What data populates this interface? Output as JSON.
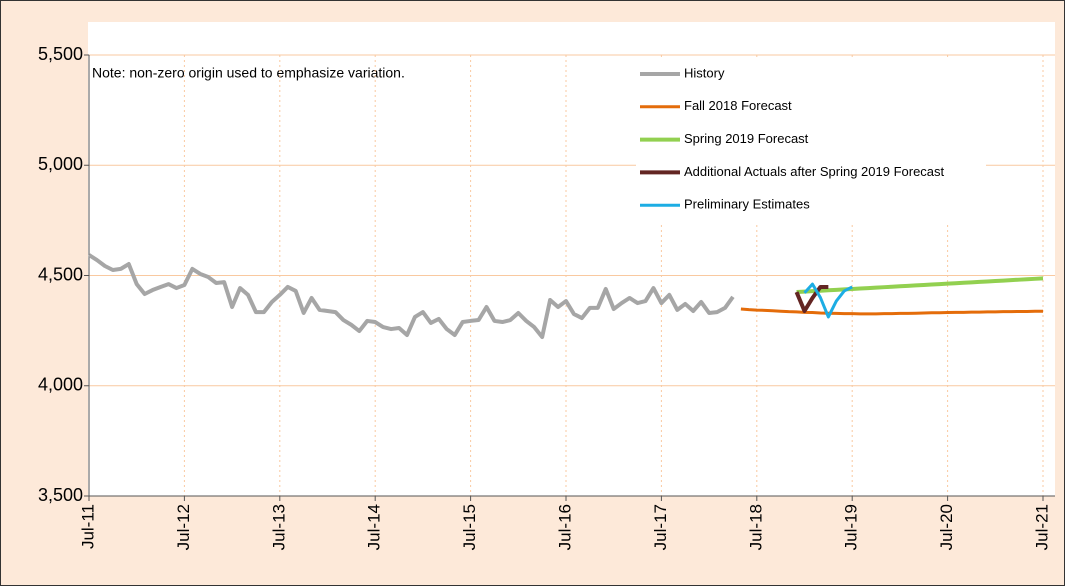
{
  "chart_data": {
    "type": "line",
    "note": "Note: non-zero origin used to emphasize variation.",
    "categories": [
      "Jul-11",
      null,
      null,
      null,
      null,
      null,
      null,
      null,
      null,
      null,
      null,
      null,
      "Jul-12",
      null,
      null,
      null,
      null,
      null,
      null,
      null,
      null,
      null,
      null,
      null,
      "Jul-13",
      null,
      null,
      null,
      null,
      null,
      null,
      null,
      null,
      null,
      null,
      null,
      "Jul-14",
      null,
      null,
      null,
      null,
      null,
      null,
      null,
      null,
      null,
      null,
      null,
      "Jul-15",
      null,
      null,
      null,
      null,
      null,
      null,
      null,
      null,
      null,
      null,
      null,
      "Jul-16",
      null,
      null,
      null,
      null,
      null,
      null,
      null,
      null,
      null,
      null,
      null,
      "Jul-17",
      null,
      null,
      null,
      null,
      null,
      null,
      null,
      null,
      null,
      null,
      null,
      "Jul-18",
      null,
      null,
      null,
      null,
      null,
      null,
      null,
      null,
      null,
      null,
      null,
      "Jul-19",
      null,
      null,
      null,
      null,
      null,
      null,
      null,
      null,
      null,
      null,
      null,
      "Jul-20",
      null,
      null,
      null,
      null,
      null,
      null,
      null,
      null,
      null,
      null,
      null,
      "Jul-21"
    ],
    "series": [
      {
        "name": "History",
        "color": "#a6a6a6",
        "width": 4,
        "values": [
          4593,
          4570,
          4543,
          4525,
          4530,
          4552,
          4461,
          4416,
          4434,
          4448,
          4461,
          4443,
          4457,
          4530,
          4507,
          4493,
          4466,
          4470,
          4357,
          4443,
          4412,
          4334,
          4334,
          4380,
          4412,
          4448,
          4430,
          4330,
          4398,
          4344,
          4339,
          4334,
          4298,
          4276,
          4248,
          4294,
          4289,
          4266,
          4257,
          4262,
          4230,
          4312,
          4334,
          4285,
          4303,
          4257,
          4230,
          4289,
          4294,
          4298,
          4357,
          4294,
          4289,
          4298,
          4330,
          4294,
          4266,
          4221,
          4389,
          4357,
          4384,
          4325,
          4307,
          4353,
          4353,
          4439,
          4348,
          4375,
          4398,
          4375,
          4384,
          4443,
          4375,
          4412,
          4344,
          4371,
          4339,
          4380,
          4330,
          4334,
          4353,
          4403,
          null,
          null,
          null,
          null,
          null,
          null,
          null,
          null,
          null,
          null,
          null,
          null,
          null,
          null,
          null,
          null,
          null,
          null,
          null,
          null,
          null,
          null,
          null,
          null,
          null,
          null,
          null,
          null,
          null,
          null,
          null,
          null,
          null,
          null,
          null,
          null,
          null,
          null,
          null
        ]
      },
      {
        "name": "Fall 2018 Forecast",
        "color": "#e46c0a",
        "width": 3,
        "values": [
          null,
          null,
          null,
          null,
          null,
          null,
          null,
          null,
          null,
          null,
          null,
          null,
          null,
          null,
          null,
          null,
          null,
          null,
          null,
          null,
          null,
          null,
          null,
          null,
          null,
          null,
          null,
          null,
          null,
          null,
          null,
          null,
          null,
          null,
          null,
          null,
          null,
          null,
          null,
          null,
          null,
          null,
          null,
          null,
          null,
          null,
          null,
          null,
          null,
          null,
          null,
          null,
          null,
          null,
          null,
          null,
          null,
          null,
          null,
          null,
          null,
          null,
          null,
          null,
          null,
          null,
          null,
          null,
          null,
          null,
          null,
          null,
          null,
          null,
          null,
          null,
          null,
          null,
          null,
          null,
          null,
          null,
          4348,
          4345,
          4343,
          4342,
          4340,
          4338,
          4336,
          4335,
          4333,
          4332,
          4330,
          4329,
          4328,
          4327,
          4327,
          4326,
          4326,
          4326,
          4327,
          4327,
          4328,
          4328,
          4329,
          4330,
          4331,
          4331,
          4332,
          4333,
          4333,
          4334,
          4334,
          4335,
          4335,
          4336,
          4336,
          4337,
          4337,
          4338,
          4338
        ]
      },
      {
        "name": "Spring 2019 Forecast",
        "color": "#92d050",
        "width": 4,
        "values": [
          null,
          null,
          null,
          null,
          null,
          null,
          null,
          null,
          null,
          null,
          null,
          null,
          null,
          null,
          null,
          null,
          null,
          null,
          null,
          null,
          null,
          null,
          null,
          null,
          null,
          null,
          null,
          null,
          null,
          null,
          null,
          null,
          null,
          null,
          null,
          null,
          null,
          null,
          null,
          null,
          null,
          null,
          null,
          null,
          null,
          null,
          null,
          null,
          null,
          null,
          null,
          null,
          null,
          null,
          null,
          null,
          null,
          null,
          null,
          null,
          null,
          null,
          null,
          null,
          null,
          null,
          null,
          null,
          null,
          null,
          null,
          null,
          null,
          null,
          null,
          null,
          null,
          null,
          null,
          null,
          null,
          null,
          null,
          null,
          null,
          null,
          null,
          null,
          null,
          4425,
          4427,
          4429,
          4431,
          4433,
          4435,
          4437,
          4439,
          4441,
          4443,
          4445,
          4447,
          4449,
          4451,
          4453,
          4455,
          4457,
          4459,
          4461,
          4463,
          4465,
          4467,
          4469,
          4471,
          4473,
          4475,
          4477,
          4479,
          4481,
          4483,
          4485,
          4487
        ]
      },
      {
        "name": "Additional Actuals after Spring 2019 Forecast",
        "color": "#632523",
        "width": 4,
        "values": [
          null,
          null,
          null,
          null,
          null,
          null,
          null,
          null,
          null,
          null,
          null,
          null,
          null,
          null,
          null,
          null,
          null,
          null,
          null,
          null,
          null,
          null,
          null,
          null,
          null,
          null,
          null,
          null,
          null,
          null,
          null,
          null,
          null,
          null,
          null,
          null,
          null,
          null,
          null,
          null,
          null,
          null,
          null,
          null,
          null,
          null,
          null,
          null,
          null,
          null,
          null,
          null,
          null,
          null,
          null,
          null,
          null,
          null,
          null,
          null,
          null,
          null,
          null,
          null,
          null,
          null,
          null,
          null,
          null,
          null,
          null,
          null,
          null,
          null,
          null,
          null,
          null,
          null,
          null,
          null,
          null,
          null,
          null,
          null,
          null,
          null,
          null,
          null,
          null,
          4425,
          4339,
          4398,
          4448,
          4448,
          null,
          null,
          null,
          null,
          null,
          null,
          null,
          null,
          null,
          null,
          null,
          null,
          null,
          null,
          null,
          null,
          null,
          null,
          null,
          null,
          null,
          null,
          null,
          null,
          null,
          null,
          null
        ]
      },
      {
        "name": "Preliminary Estimates",
        "color": "#1cade4",
        "width": 3,
        "values": [
          null,
          null,
          null,
          null,
          null,
          null,
          null,
          null,
          null,
          null,
          null,
          null,
          null,
          null,
          null,
          null,
          null,
          null,
          null,
          null,
          null,
          null,
          null,
          null,
          null,
          null,
          null,
          null,
          null,
          null,
          null,
          null,
          null,
          null,
          null,
          null,
          null,
          null,
          null,
          null,
          null,
          null,
          null,
          null,
          null,
          null,
          null,
          null,
          null,
          null,
          null,
          null,
          null,
          null,
          null,
          null,
          null,
          null,
          null,
          null,
          null,
          null,
          null,
          null,
          null,
          null,
          null,
          null,
          null,
          null,
          null,
          null,
          null,
          null,
          null,
          null,
          null,
          null,
          null,
          null,
          null,
          null,
          null,
          null,
          null,
          null,
          null,
          null,
          null,
          null,
          4421,
          4461,
          4400,
          4312,
          4384,
          4430,
          4448,
          null,
          null,
          null,
          null,
          null,
          null,
          null,
          null,
          null,
          null,
          null,
          null,
          null,
          null,
          null,
          null,
          null,
          null,
          null,
          null,
          null,
          null,
          null,
          null
        ]
      }
    ],
    "ylim": [
      3500,
      5500
    ],
    "yticks": [
      {
        "value": 3500,
        "label": "3,500"
      },
      {
        "value": 4000,
        "label": "4,000"
      },
      {
        "value": 4500,
        "label": "4,500"
      },
      {
        "value": 5000,
        "label": "5,000"
      },
      {
        "value": 5500,
        "label": "5,500"
      }
    ],
    "grid": true,
    "legend": "upper right"
  }
}
